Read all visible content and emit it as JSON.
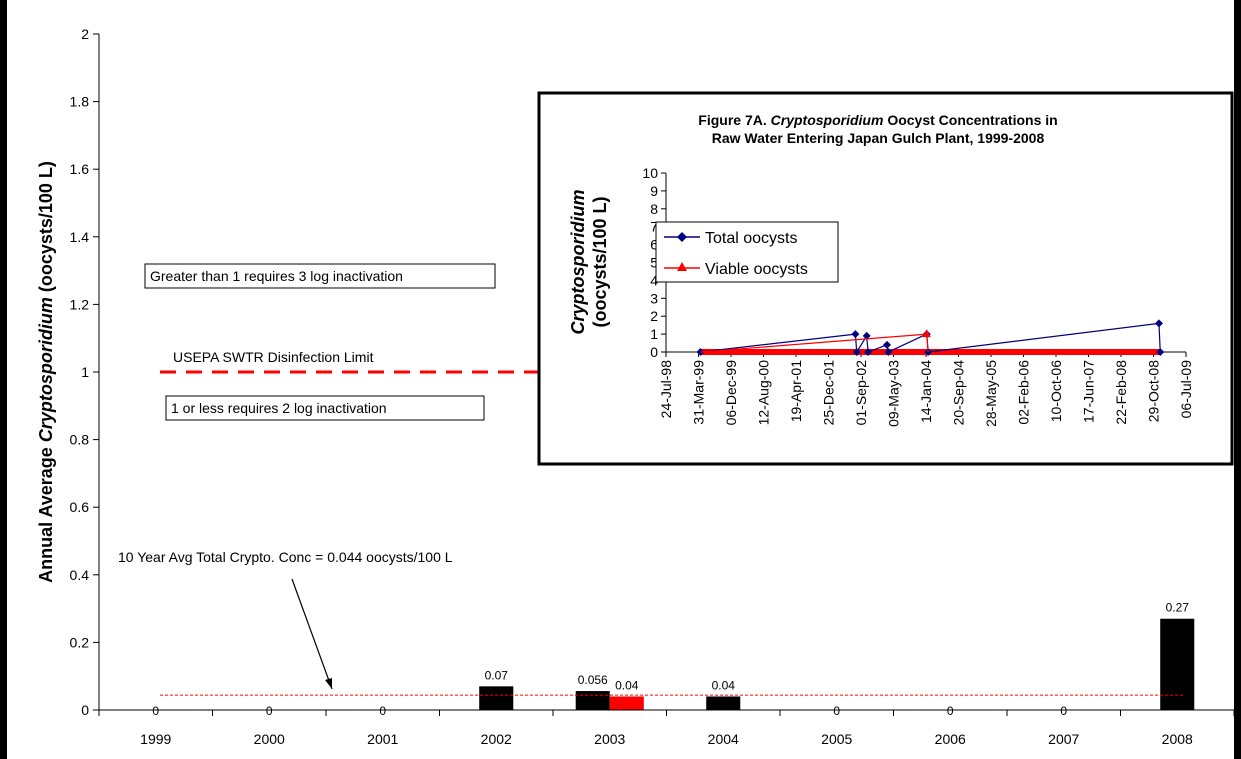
{
  "chart_data": [
    {
      "type": "bar",
      "title": "",
      "xlabel": "",
      "ylabel_parts": [
        "Annual Average ",
        "Cryptosporidium",
        " (oocysts/100 L)"
      ],
      "categories": [
        "1999",
        "2000",
        "2001",
        "2002",
        "2003",
        "2004",
        "2005",
        "2006",
        "2007",
        "2008"
      ],
      "ylim": [
        0,
        2
      ],
      "yticks": [
        "0",
        "0.2",
        "0.4",
        "0.6",
        "0.8",
        "1",
        "1.2",
        "1.4",
        "1.6",
        "1.8",
        "2"
      ],
      "series": [
        {
          "name": "Total oocysts",
          "color": "#000000",
          "values": [
            0,
            0,
            0,
            0.07,
            0.056,
            0.04,
            0,
            0,
            0,
            0.27
          ]
        },
        {
          "name": "Viable oocysts",
          "color": "#ff0000",
          "values": [
            null,
            null,
            null,
            null,
            0.04,
            null,
            null,
            null,
            null,
            null
          ]
        }
      ],
      "data_labels": [
        "0",
        "0",
        "0",
        "0.07",
        "0.056",
        "0.04",
        "0.04",
        "0",
        "0",
        "0",
        "0.27"
      ],
      "reference_lines": [
        {
          "value": 1,
          "label": "USEPA SWTR Disinfection Limit",
          "color": "#ff0000",
          "style": "dashed"
        },
        {
          "value": 0.044,
          "label": "10 Year Avg Total Crypto. Conc = 0.044 oocysts/100 L",
          "color": "#ff0000",
          "style": "dotted"
        }
      ],
      "annotations": [
        "Greater than 1 requires 3 log inactivation",
        "1 or less requires 2 log inactivation"
      ]
    },
    {
      "type": "line",
      "title_line1_parts": [
        "Figure 7A.  ",
        "Cryptosporidium",
        " Oocyst Concentrations in"
      ],
      "title_line2": "Raw Water Entering Japan Gulch Plant, 1999-2008",
      "ylabel_line1": "Cryptosporidium",
      "ylabel_line2": "(oocysts/100 L)",
      "ylim": [
        0,
        10
      ],
      "yticks": [
        "0",
        "1",
        "2",
        "3",
        "4",
        "5",
        "6",
        "7",
        "8",
        "9",
        "10"
      ],
      "xticks": [
        "24-Jul-98",
        "31-Mar-99",
        "06-Dec-99",
        "12-Aug-00",
        "19-Apr-01",
        "25-Dec-01",
        "01-Sep-02",
        "09-May-03",
        "14-Jan-04",
        "20-Sep-04",
        "28-May-05",
        "02-Feb-06",
        "10-Oct-06",
        "17-Jun-07",
        "22-Feb-08",
        "29-Oct-08",
        "06-Jul-09"
      ],
      "legend_position": "upper-left",
      "series": [
        {
          "name": "Total oocysts",
          "color": "#000080",
          "points": [
            [
              "1999-04-15",
              0
            ],
            [
              "2002-07-20",
              1
            ],
            [
              "2002-07-30",
              0
            ],
            [
              "2002-10-15",
              0.9
            ],
            [
              "2002-10-25",
              0
            ],
            [
              "2003-03-20",
              0.4
            ],
            [
              "2003-03-30",
              0
            ],
            [
              "2004-01-20",
              1
            ],
            [
              "2004-01-30",
              0
            ],
            [
              "2008-12-10",
              1.6
            ],
            [
              "2008-12-20",
              0
            ]
          ]
        },
        {
          "name": "Viable oocysts",
          "color": "#ff0000",
          "points": [
            [
              "1999-04-15",
              0
            ],
            [
              "2004-01-20",
              1
            ],
            [
              "2004-01-30",
              0
            ],
            [
              "2008-12-10",
              0
            ],
            [
              "2008-12-20",
              0
            ]
          ]
        }
      ]
    }
  ]
}
